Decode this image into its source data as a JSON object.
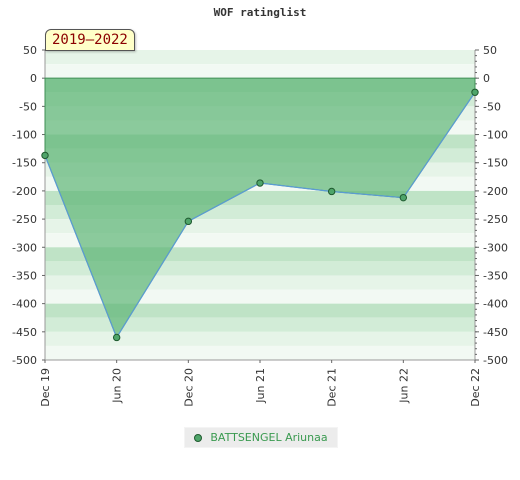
{
  "chart_data": {
    "type": "area",
    "title": "WOF ratinglist",
    "period_label": "2019–2022",
    "x_ticks": [
      "Dec 19",
      "Jun 20",
      "Dec 20",
      "Jun 21",
      "Dec 21",
      "Jun 22",
      "Dec 22"
    ],
    "ylim": [
      -500,
      50
    ],
    "y_ticks": [
      50,
      0,
      -50,
      -100,
      -150,
      -200,
      -250,
      -300,
      -350,
      -400,
      -450,
      -500
    ],
    "series": [
      {
        "name": "BATTSENGEL Ariunaa",
        "x": [
          "Dec 19",
          "Jun 20",
          "Dec 20",
          "Jun 21",
          "Dec 21",
          "Jun 22",
          "Dec 22"
        ],
        "values": [
          -137,
          -460,
          -254,
          -186,
          -201,
          -212,
          -25
        ]
      }
    ],
    "legend_position": "bottom-center",
    "grid": true,
    "colors": {
      "area_fill": "#62b77a",
      "line": "#5b9bd5",
      "marker": "#4fa56a",
      "band_dark": "#bfe3c6",
      "band_light": "#e6f4e8",
      "legend_text": "#3a9a50"
    }
  }
}
